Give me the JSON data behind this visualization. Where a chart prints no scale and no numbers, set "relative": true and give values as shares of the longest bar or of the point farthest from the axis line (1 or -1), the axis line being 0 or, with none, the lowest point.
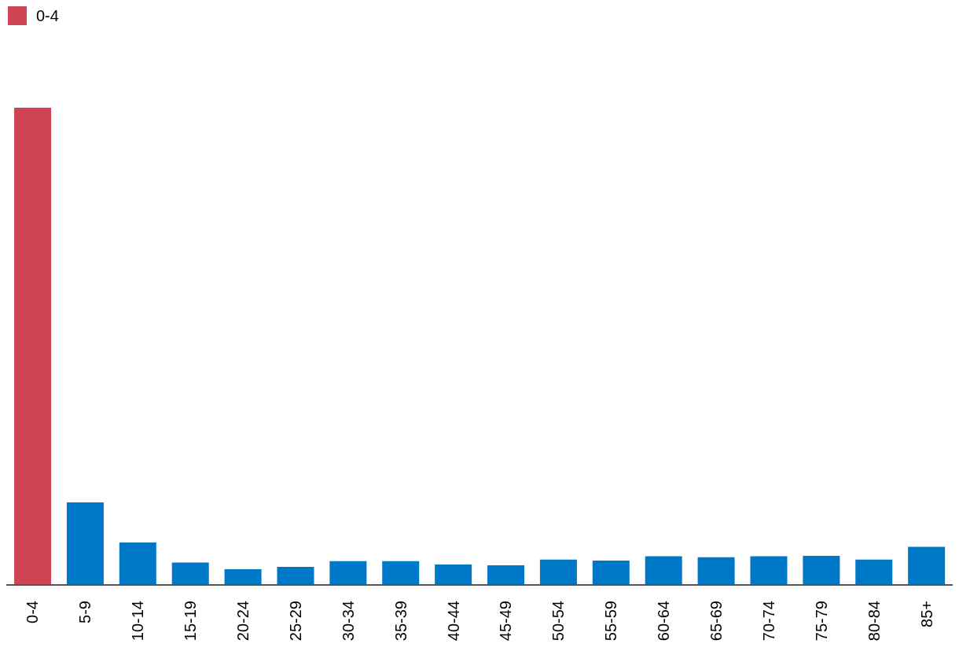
{
  "chart_data": {
    "type": "bar",
    "relative": true,
    "stacked": true,
    "legend": "top left",
    "categories": [
      "0-4",
      "5-9",
      "10-14",
      "15-19",
      "20-24",
      "25-29",
      "30-34",
      "35-39",
      "40-44",
      "45-49",
      "50-54",
      "55-59",
      "60-64",
      "65-69",
      "70-74",
      "75-79",
      "80-84",
      "85+"
    ],
    "series": [
      {
        "name": "0-4",
        "color": "#cf4452",
        "values": [
          1,
          null,
          null,
          null,
          null,
          null,
          null,
          null,
          null,
          null,
          null,
          null,
          null,
          null,
          null,
          null,
          null,
          null
        ]
      },
      {
        "color": "#0078c8",
        "values": [
          null,
          0.173,
          0.089,
          0.047,
          0.033,
          0.038,
          0.05,
          0.05,
          0.043,
          0.041,
          0.053,
          0.051,
          0.06,
          0.058,
          0.06,
          0.061,
          0.053,
          0.08
        ]
      }
    ]
  }
}
